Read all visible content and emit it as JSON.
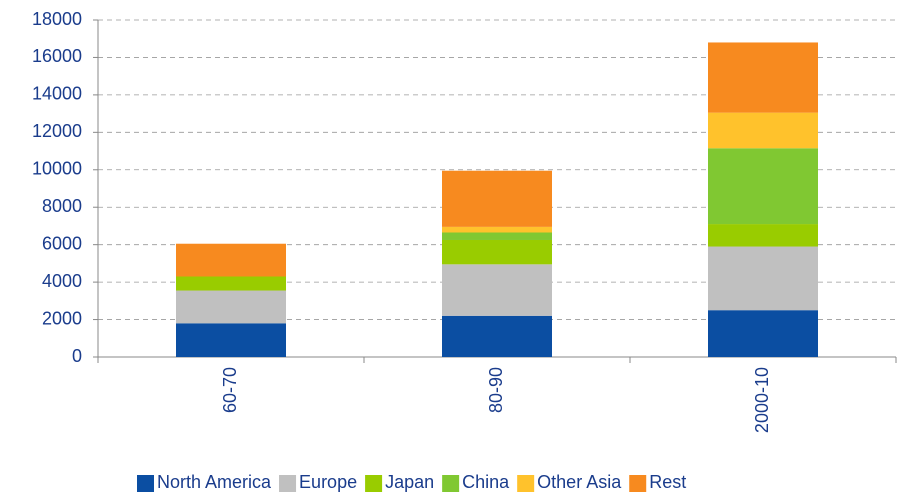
{
  "chart_data": {
    "type": "stacked_bar",
    "categories": [
      "60-70",
      "80-90",
      "2000-10"
    ],
    "series": [
      {
        "name": "North America",
        "color": "#0b4ea2",
        "values": [
          1800,
          2200,
          2500
        ]
      },
      {
        "name": "Europe",
        "color": "#c0c0c0",
        "values": [
          1750,
          2750,
          3400
        ]
      },
      {
        "name": "Japan",
        "color": "#99cc00",
        "values": [
          750,
          1300,
          1200
        ]
      },
      {
        "name": "China",
        "color": "#80c832",
        "values": [
          0,
          400,
          4050
        ]
      },
      {
        "name": "Other Asia",
        "color": "#ffc22c",
        "values": [
          0,
          300,
          1900
        ]
      },
      {
        "name": "Rest",
        "color": "#f78a1f",
        "values": [
          1750,
          3000,
          3750
        ]
      }
    ],
    "ylim": [
      0,
      18000
    ],
    "yticks": [
      0,
      2000,
      4000,
      6000,
      8000,
      10000,
      12000,
      14000,
      16000,
      18000
    ],
    "grid": true,
    "legend": "bottom"
  }
}
